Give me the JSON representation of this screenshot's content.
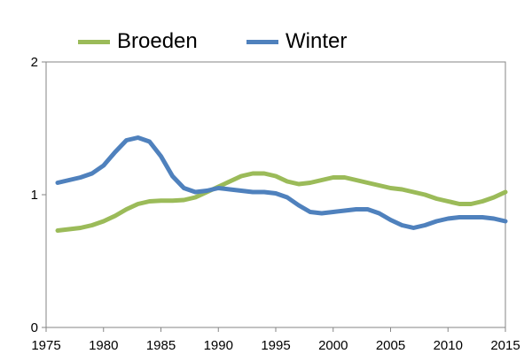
{
  "chart_data": {
    "type": "line",
    "title": "",
    "xlabel": "",
    "ylabel": "",
    "xlim": [
      1975,
      2015
    ],
    "ylim": [
      0,
      2
    ],
    "xticks": [
      1975,
      1980,
      1985,
      1990,
      1995,
      2000,
      2005,
      2010,
      2015
    ],
    "yticks": [
      0,
      1,
      2
    ],
    "grid": false,
    "legend_position": "top",
    "x": [
      1976,
      1977,
      1978,
      1979,
      1980,
      1981,
      1982,
      1983,
      1984,
      1985,
      1986,
      1987,
      1988,
      1989,
      1990,
      1991,
      1992,
      1993,
      1994,
      1995,
      1996,
      1997,
      1998,
      1999,
      2000,
      2001,
      2002,
      2003,
      2004,
      2005,
      2006,
      2007,
      2008,
      2009,
      2010,
      2011,
      2012,
      2013,
      2014,
      2015
    ],
    "series": [
      {
        "name": "Broeden",
        "color": "#9bbb59",
        "values": [
          0.73,
          0.74,
          0.75,
          0.77,
          0.8,
          0.84,
          0.89,
          0.93,
          0.95,
          0.955,
          0.955,
          0.96,
          0.98,
          1.02,
          1.06,
          1.1,
          1.14,
          1.16,
          1.16,
          1.14,
          1.1,
          1.08,
          1.09,
          1.11,
          1.13,
          1.13,
          1.11,
          1.09,
          1.07,
          1.05,
          1.04,
          1.02,
          1.0,
          0.97,
          0.95,
          0.93,
          0.93,
          0.95,
          0.98,
          1.02
        ]
      },
      {
        "name": "Winter",
        "color": "#4f81bd",
        "values": [
          1.09,
          1.11,
          1.13,
          1.16,
          1.22,
          1.32,
          1.41,
          1.43,
          1.4,
          1.29,
          1.14,
          1.05,
          1.02,
          1.03,
          1.05,
          1.04,
          1.03,
          1.02,
          1.02,
          1.01,
          0.98,
          0.92,
          0.87,
          0.86,
          0.87,
          0.88,
          0.89,
          0.89,
          0.86,
          0.81,
          0.77,
          0.75,
          0.77,
          0.8,
          0.82,
          0.83,
          0.83,
          0.83,
          0.82,
          0.8
        ]
      }
    ]
  }
}
